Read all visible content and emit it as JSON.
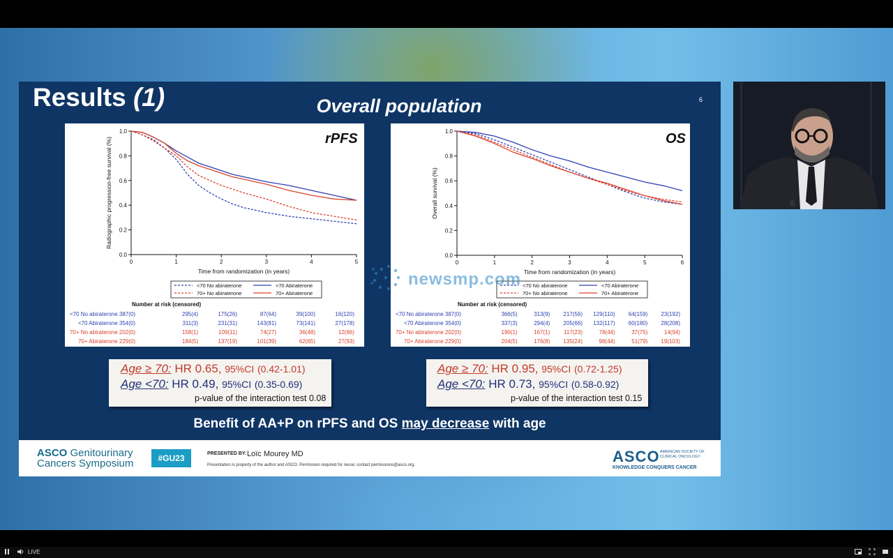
{
  "slide": {
    "title_main": "Results",
    "title_paren": "(1)",
    "page_number": "6",
    "subtitle": "Overall population",
    "conclusion_pre": "Benefit of AA+P on rPFS and OS ",
    "conclusion_underline": "may decrease",
    "conclusion_post": " with age"
  },
  "chart_data": [
    {
      "type": "line",
      "title": "rPFS",
      "xlabel": "Time from randomization (in years)",
      "ylabel": "Radiographic progression-free survival (%)",
      "xlim": [
        0,
        5
      ],
      "ylim": [
        0,
        1
      ],
      "xticks": [
        "0",
        "1",
        "2",
        "3",
        "4",
        "5"
      ],
      "yticks": [
        "0.0",
        "0.2",
        "0.4",
        "0.6",
        "0.8",
        "1.0"
      ],
      "legend": [
        "<70 No abiraterone",
        "<70 Abiraterone",
        "70+ No abiraterone",
        "70+ Abiraterone"
      ],
      "series": [
        {
          "name": "<70 No abiraterone",
          "color": "#2e3fb0",
          "dash": true,
          "x": [
            0,
            0.25,
            0.5,
            0.75,
            1,
            1.25,
            1.5,
            1.75,
            2,
            2.25,
            2.5,
            3,
            3.5,
            4,
            4.5,
            5
          ],
          "y": [
            1.0,
            0.97,
            0.93,
            0.86,
            0.77,
            0.65,
            0.56,
            0.5,
            0.45,
            0.41,
            0.38,
            0.34,
            0.31,
            0.29,
            0.27,
            0.25
          ]
        },
        {
          "name": "<70 Abiraterone",
          "color": "#2e3fb0",
          "dash": false,
          "x": [
            0,
            0.25,
            0.5,
            0.75,
            1,
            1.25,
            1.5,
            1.75,
            2,
            2.25,
            2.5,
            3,
            3.5,
            4,
            4.5,
            5
          ],
          "y": [
            1.0,
            0.99,
            0.95,
            0.9,
            0.84,
            0.79,
            0.74,
            0.71,
            0.68,
            0.65,
            0.63,
            0.59,
            0.56,
            0.52,
            0.48,
            0.44
          ]
        },
        {
          "name": "70+ No abiraterone",
          "color": "#d9402b",
          "dash": true,
          "x": [
            0,
            0.25,
            0.5,
            0.75,
            1,
            1.25,
            1.5,
            1.75,
            2,
            2.25,
            2.5,
            3,
            3.5,
            4,
            4.5,
            5
          ],
          "y": [
            1.0,
            0.97,
            0.92,
            0.86,
            0.8,
            0.71,
            0.64,
            0.6,
            0.56,
            0.53,
            0.5,
            0.45,
            0.39,
            0.34,
            0.31,
            0.28
          ]
        },
        {
          "name": "70+ Abiraterone",
          "color": "#d9402b",
          "dash": false,
          "x": [
            0,
            0.25,
            0.5,
            0.75,
            1,
            1.25,
            1.5,
            1.75,
            2,
            2.25,
            2.5,
            3,
            3.5,
            4,
            4.5,
            5
          ],
          "y": [
            1.0,
            0.99,
            0.95,
            0.9,
            0.82,
            0.76,
            0.72,
            0.69,
            0.66,
            0.63,
            0.61,
            0.57,
            0.52,
            0.48,
            0.45,
            0.44
          ]
        }
      ],
      "at_risk": {
        "heading": "Number at risk (censored)",
        "rows": [
          {
            "label": "<70 No abiraterone",
            "color": "#2e3fb0",
            "values": [
              "387(0)",
              "295(4)",
              "175(26)",
              "87(64)",
              "39(100)",
              "16(120)"
            ]
          },
          {
            "label": "<70 Abiraterone",
            "color": "#2e3fb0",
            "values": [
              "354(0)",
              "311(3)",
              "231(31)",
              "143(81)",
              "73(141)",
              "27(178)"
            ]
          },
          {
            "label": "70+ No abiraterone",
            "color": "#d9402b",
            "values": [
              "202(0)",
              "158(1)",
              "109(11)",
              "74(27)",
              "36(48)",
              "12(66)"
            ]
          },
          {
            "label": "70+ Abiraterone",
            "color": "#d9402b",
            "values": [
              "229(0)",
              "184(5)",
              "137(19)",
              "101(39)",
              "62(65)",
              "27(93)"
            ]
          }
        ]
      }
    },
    {
      "type": "line",
      "title": "OS",
      "xlabel": "Time from randomization (in years)",
      "ylabel": "Overall survival (%)",
      "xlim": [
        0,
        6
      ],
      "ylim": [
        0,
        1
      ],
      "xticks": [
        "0",
        "1",
        "2",
        "3",
        "4",
        "5",
        "6"
      ],
      "yticks": [
        "0.0",
        "0.2",
        "0.4",
        "0.6",
        "0.8",
        "1.0"
      ],
      "legend": [
        "<70 No abiraterone",
        "<70 Abiraterone",
        "70+ No abiraterone",
        "70+ Abiraterone"
      ],
      "series": [
        {
          "name": "<70 No abiraterone",
          "color": "#2e3fb0",
          "dash": true,
          "x": [
            0,
            0.5,
            1,
            1.5,
            2,
            2.5,
            3,
            3.5,
            4,
            4.5,
            5,
            5.5,
            6
          ],
          "y": [
            1.0,
            0.98,
            0.93,
            0.87,
            0.81,
            0.75,
            0.69,
            0.63,
            0.57,
            0.51,
            0.46,
            0.43,
            0.41
          ]
        },
        {
          "name": "<70 Abiraterone",
          "color": "#2e3fb0",
          "dash": false,
          "x": [
            0,
            0.5,
            1,
            1.5,
            2,
            2.5,
            3,
            3.5,
            4,
            4.5,
            5,
            5.5,
            6
          ],
          "y": [
            1.0,
            0.99,
            0.96,
            0.91,
            0.85,
            0.8,
            0.76,
            0.71,
            0.67,
            0.63,
            0.59,
            0.56,
            0.52
          ]
        },
        {
          "name": "70+ No abiraterone",
          "color": "#d9402b",
          "dash": true,
          "x": [
            0,
            0.5,
            1,
            1.5,
            2,
            2.5,
            3,
            3.5,
            4,
            4.5,
            5,
            5.5,
            6
          ],
          "y": [
            1.0,
            0.97,
            0.91,
            0.85,
            0.79,
            0.73,
            0.67,
            0.62,
            0.57,
            0.52,
            0.48,
            0.45,
            0.43
          ]
        },
        {
          "name": "70+ Abiraterone",
          "color": "#d9402b",
          "dash": false,
          "x": [
            0,
            0.5,
            1,
            1.5,
            2,
            2.5,
            3,
            3.5,
            4,
            4.5,
            5,
            5.5,
            6
          ],
          "y": [
            1.0,
            0.96,
            0.9,
            0.83,
            0.78,
            0.72,
            0.67,
            0.62,
            0.58,
            0.53,
            0.48,
            0.44,
            0.41
          ]
        }
      ],
      "at_risk": {
        "heading": "Number at risk (censored)",
        "rows": [
          {
            "label": "<70 No abiraterone",
            "color": "#2e3fb0",
            "values": [
              "387(0)",
              "366(5)",
              "313(9)",
              "217(56)",
              "129(110)",
              "64(159)",
              "23(192)"
            ]
          },
          {
            "label": "<70 Abiraterone",
            "color": "#2e3fb0",
            "values": [
              "354(0)",
              "337(3)",
              "294(4)",
              "205(66)",
              "132(117)",
              "60(180)",
              "28(208)"
            ]
          },
          {
            "label": "70+ No abiraterone",
            "color": "#d9402b",
            "values": [
              "202(0)",
              "190(1)",
              "167(1)",
              "117(23)",
              "78(44)",
              "37(75)",
              "14(94)"
            ]
          },
          {
            "label": "70+ Abiraterone",
            "color": "#d9402b",
            "values": [
              "229(0)",
              "204(5)",
              "176(8)",
              "135(24)",
              "98(44)",
              "51(79)",
              "19(103)"
            ]
          }
        ]
      }
    }
  ],
  "hr_boxes": [
    {
      "old_label": "Age ≥ 70:",
      "old_hr": "HR 0.65,",
      "old_ci_label": "95%CI",
      "old_ci": "(0.42-1.01)",
      "young_label": "Age <70:",
      "young_hr": "HR 0.49,",
      "young_ci_label": "95%CI",
      "young_ci": "(0.35-0.69)",
      "pvalue": "p-value of the interaction test 0.08"
    },
    {
      "old_label": "Age ≥ 70:",
      "old_hr": "HR 0.95,",
      "old_ci_label": "95%CI",
      "old_ci": "(0.72-1.25)",
      "young_label": "Age <70:",
      "young_hr": "HR 0.73,",
      "young_ci_label": "95%CI",
      "young_ci": "(0.58-0.92)",
      "pvalue": "p-value of the interaction test 0.15"
    }
  ],
  "footer": {
    "meeting_line1_bold": "ASCO",
    "meeting_line1_rest": " Genitourinary",
    "meeting_line2": "Cancers Symposium",
    "hashtag": "#GU23",
    "presented_by": "PRESENTED BY:",
    "presenter": "Loïc Mourey MD",
    "disclaimer": "Presentation is property of the author and ASCO. Permission required for reuse; contact permissions@asco.org.",
    "asco_word": "ASCO",
    "asco_society": "AMERICAN SOCIETY OF CLINICAL ONCOLOGY",
    "asco_tagline": "KNOWLEDGE CONQUERS CANCER"
  },
  "watermark": "newsmp.com",
  "player": {
    "live_label": "LIVE",
    "play_pause_icon": "pause-icon",
    "volume_icon": "volume-icon"
  },
  "colors": {
    "slide_bg": "#0f3564",
    "blue_series": "#2e3fb0",
    "red_series": "#d9402b",
    "hashtag_bg": "#1b9dc4"
  }
}
